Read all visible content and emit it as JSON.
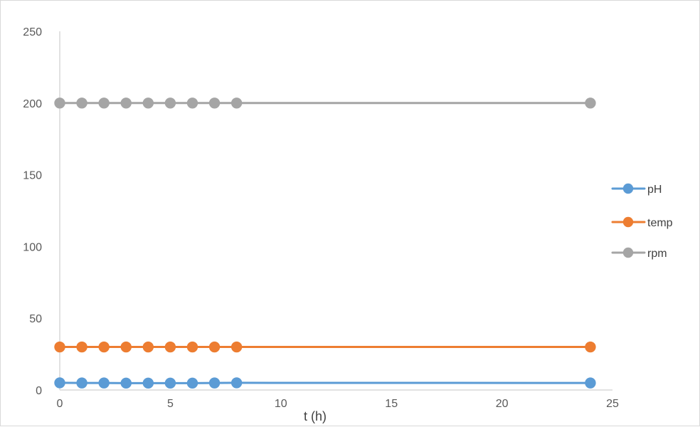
{
  "chart_data": {
    "type": "line",
    "xlabel": "t (h)",
    "ylabel": "",
    "xlim": [
      0,
      25
    ],
    "ylim": [
      0,
      250
    ],
    "xticks": [
      0,
      5,
      10,
      15,
      20,
      25
    ],
    "yticks": [
      0,
      50,
      100,
      150,
      200,
      250
    ],
    "grid": false,
    "legend_position": "right",
    "series": [
      {
        "name": "pH",
        "color": "#5b9bd5",
        "x": [
          0,
          1,
          2,
          3,
          4,
          5,
          6,
          7,
          8,
          24
        ],
        "y": [
          5,
          4.9,
          4.9,
          4.8,
          4.8,
          4.8,
          4.8,
          4.9,
          5,
          4.9
        ]
      },
      {
        "name": "temp",
        "color": "#ed7d31",
        "x": [
          0,
          1,
          2,
          3,
          4,
          5,
          6,
          7,
          8,
          24
        ],
        "y": [
          30,
          30,
          30,
          30,
          30,
          30,
          30,
          30,
          30,
          30
        ]
      },
      {
        "name": "rpm",
        "color": "#a5a5a5",
        "x": [
          0,
          1,
          2,
          3,
          4,
          5,
          6,
          7,
          8,
          24
        ],
        "y": [
          200,
          200,
          200,
          200,
          200,
          200,
          200,
          200,
          200,
          200
        ]
      }
    ]
  }
}
